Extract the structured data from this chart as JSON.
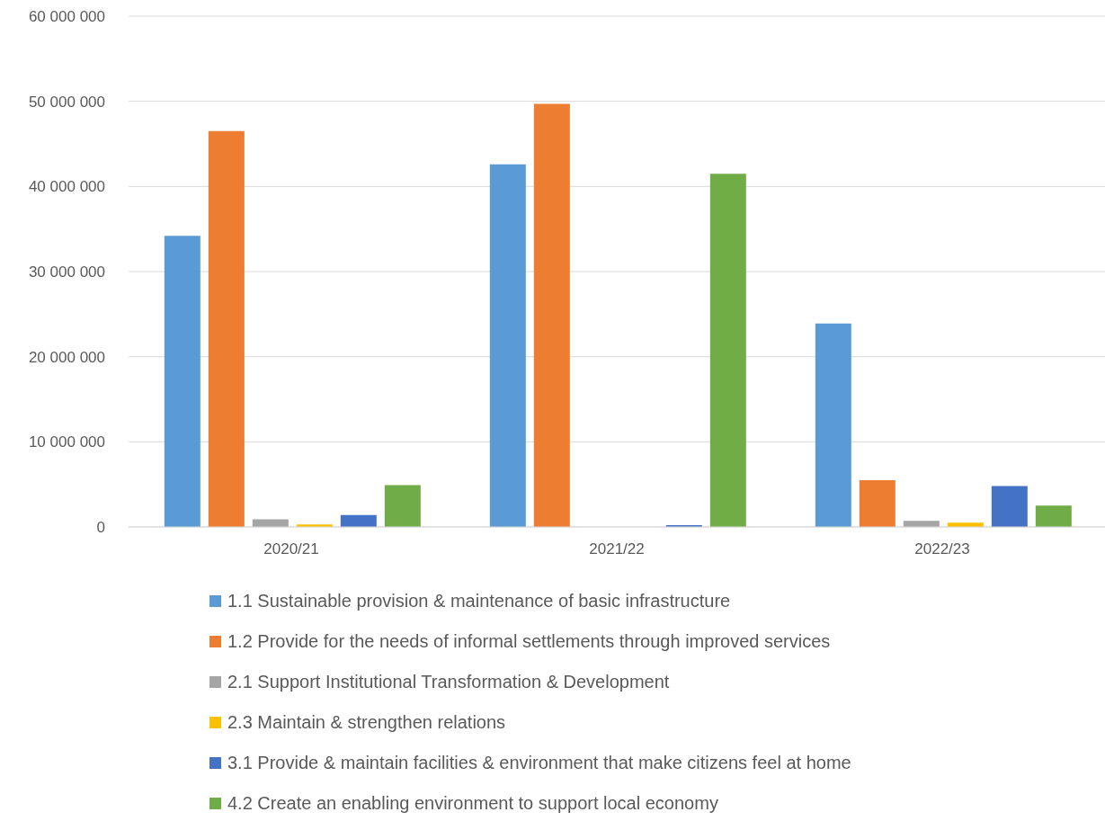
{
  "chart_data": {
    "type": "bar",
    "categories": [
      "2020/21",
      "2021/22",
      "2022/23"
    ],
    "series": [
      {
        "name": "1.1 Sustainable provision & maintenance of basic infrastructure",
        "color": "#5b9bd5",
        "values": [
          34200000,
          42600000,
          23900000
        ]
      },
      {
        "name": "1.2 Provide for the needs of informal settlements through improved services",
        "color": "#ed7d31",
        "values": [
          46500000,
          49700000,
          5500000
        ]
      },
      {
        "name": "2.1 Support Institutional Transformation & Development",
        "color": "#a5a5a5",
        "values": [
          900000,
          0,
          700000
        ]
      },
      {
        "name": "2.3 Maintain & strengthen relations",
        "color": "#ffc000",
        "values": [
          300000,
          0,
          500000
        ]
      },
      {
        "name": "3.1 Provide & maintain facilities & environment that make citizens feel at home",
        "color": "#4472c4",
        "values": [
          1400000,
          200000,
          4800000
        ]
      },
      {
        "name": "4.2 Create an enabling environment to support local economy",
        "color": "#70ad47",
        "values": [
          4900000,
          41500000,
          2500000
        ]
      }
    ],
    "ylim": [
      0,
      60000000
    ],
    "yticks": [
      0,
      {
        "value": 10000000,
        "label": "10 000 000"
      },
      {
        "value": 20000000,
        "label": "20 000 000"
      },
      {
        "value": 30000000,
        "label": "30 000 000"
      },
      {
        "value": 40000000,
        "label": "40 000 000"
      },
      {
        "value": 50000000,
        "label": "50 000 000"
      },
      {
        "value": 60000000,
        "label": "60 000 000"
      }
    ],
    "grid": "y",
    "legend": "bottom"
  }
}
